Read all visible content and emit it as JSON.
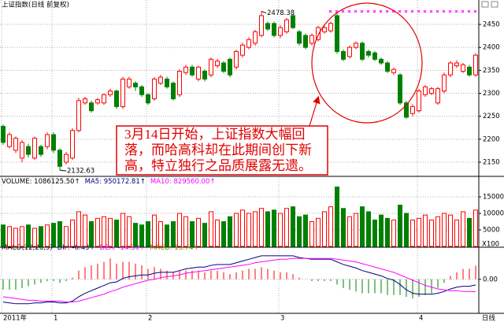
{
  "chart_data": [
    {
      "type": "candlestick",
      "title": "上证指数(日线 前复权)",
      "period_label": "日线",
      "categories": [
        "2011年",
        null,
        null,
        null,
        null,
        null,
        null,
        null,
        "1",
        null,
        null,
        null,
        null,
        null,
        null,
        null,
        null,
        null,
        null,
        null,
        null,
        null,
        null,
        "2",
        null,
        null,
        null,
        null,
        null,
        null,
        null,
        null,
        null,
        null,
        null,
        null,
        null,
        null,
        null,
        null,
        null,
        null,
        null,
        null,
        "3",
        null,
        null,
        null,
        null,
        null,
        null,
        null,
        null,
        null,
        null,
        null,
        null,
        null,
        null,
        null,
        null,
        null,
        null,
        null,
        null,
        null,
        "4",
        null,
        null,
        null,
        null,
        null,
        null,
        null,
        null,
        null
      ],
      "open": [
        2228,
        2184,
        2176,
        2159,
        2184,
        2159,
        2184,
        2184,
        2210,
        2176,
        2150,
        2159,
        2219,
        2279,
        2279,
        2279,
        2279,
        2297,
        2305,
        2271,
        2314,
        2322,
        2314,
        2297,
        2288,
        2322,
        2331,
        2322,
        2297,
        2345,
        2357,
        2331,
        2348,
        2340,
        2360,
        2366,
        2374,
        2357,
        2383,
        2400,
        2409,
        2426,
        2452,
        2452,
        2426,
        2434,
        2469,
        2434,
        2426,
        2409,
        2417,
        2434,
        2436,
        2469,
        2391,
        2380,
        2400,
        2409,
        2391,
        2388,
        2374,
        2366,
        2345,
        2340,
        2279,
        2256,
        2262,
        2297,
        2300,
        2279,
        2305,
        2340,
        2360,
        2348,
        2357,
        2340
      ],
      "high": [
        2232,
        2215,
        2206,
        2198,
        2190,
        2206,
        2188,
        2215,
        2215,
        2180,
        2172,
        2224,
        2290,
        2292,
        2284,
        2290,
        2300,
        2310,
        2308,
        2336,
        2336,
        2326,
        2318,
        2300,
        2335,
        2340,
        2336,
        2326,
        2352,
        2362,
        2362,
        2360,
        2352,
        2378,
        2375,
        2370,
        2378,
        2395,
        2410,
        2422,
        2438,
        2478.38,
        2456,
        2456,
        2448,
        2464,
        2473,
        2438,
        2430,
        2430,
        2447,
        2447,
        2456,
        2474,
        2395,
        2404,
        2413,
        2413,
        2395,
        2392,
        2378,
        2370,
        2356,
        2344,
        2284,
        2276,
        2310,
        2318,
        2314,
        2314,
        2345,
        2370,
        2372,
        2366,
        2362,
        2387
      ],
      "low": [
        2188,
        2180,
        2170,
        2150,
        2160,
        2155,
        2162,
        2178,
        2170,
        2132.63,
        2145,
        2155,
        2215,
        2275,
        2258,
        2275,
        2275,
        2292,
        2266,
        2266,
        2310,
        2305,
        2292,
        2275,
        2284,
        2318,
        2310,
        2284,
        2292,
        2340,
        2336,
        2326,
        2326,
        2335,
        2355,
        2344,
        2335,
        2352,
        2378,
        2396,
        2404,
        2422,
        2436,
        2422,
        2420,
        2430,
        2440,
        2404,
        2396,
        2404,
        2413,
        2430,
        2432,
        2386,
        2370,
        2376,
        2396,
        2370,
        2378,
        2370,
        2362,
        2344,
        2340,
        2275,
        2244,
        2250,
        2258,
        2292,
        2296,
        2275,
        2300,
        2335,
        2355,
        2344,
        2336,
        2336
      ],
      "close": [
        2193,
        2210,
        2202,
        2193,
        2167,
        2202,
        2167,
        2210,
        2176,
        2141,
        2167,
        2219,
        2284,
        2288,
        2262,
        2286,
        2297,
        2305,
        2271,
        2331,
        2331,
        2314,
        2297,
        2279,
        2331,
        2335,
        2314,
        2288,
        2348,
        2357,
        2340,
        2357,
        2331,
        2374,
        2370,
        2348,
        2340,
        2391,
        2405,
        2417,
        2434,
        2469,
        2440,
        2426,
        2443,
        2460,
        2443,
        2409,
        2400,
        2426,
        2443,
        2443,
        2452,
        2391,
        2374,
        2400,
        2409,
        2374,
        2383,
        2374,
        2366,
        2348,
        2352,
        2279,
        2248,
        2271,
        2305,
        2314,
        2310,
        2310,
        2340,
        2366,
        2366,
        2362,
        2340,
        2383
      ],
      "up_color": "#ff0000",
      "down_color": "#008000",
      "ylim": [
        2126,
        2486
      ],
      "yticks": [
        2150,
        2200,
        2250,
        2300,
        2350,
        2400,
        2450
      ],
      "grid": true,
      "callout": [
        "3月14日开始，上证指数大幅回",
        "落，而哈高科却在此期间创下新",
        "高，特立独行之品质展露无遗。"
      ]
    },
    {
      "type": "bar",
      "legend": [
        {
          "text": "VOLUME: 1086125.50↑",
          "color": "#000000"
        },
        {
          "text": "MA5: 950172.81↑",
          "color": "#000080"
        },
        {
          "text": "MA10: 829560.00↑",
          "color": "#ff00ff"
        }
      ],
      "values": [
        6500,
        6000,
        5500,
        6000,
        6500,
        5500,
        6000,
        6500,
        7000,
        7500,
        6000,
        8000,
        10500,
        9500,
        7500,
        8500,
        9000,
        8500,
        8000,
        10000,
        9000,
        7000,
        6500,
        7500,
        9500,
        7500,
        6500,
        7500,
        10000,
        9000,
        7500,
        8500,
        7000,
        10500,
        8000,
        7500,
        9000,
        10000,
        11000,
        10000,
        10500,
        11500,
        10500,
        11000,
        10000,
        11500,
        12000,
        9000,
        9500,
        7500,
        8500,
        10500,
        12000,
        18000,
        11500,
        9000,
        10000,
        12000,
        10500,
        8000,
        9500,
        8500,
        8000,
        12500,
        10000,
        8000,
        8500,
        9500,
        8000,
        9000,
        10000,
        9500,
        8000,
        10500,
        8500,
        11000
      ],
      "ylim": [
        0,
        19300
      ],
      "yticks": [
        5000,
        10000,
        15000
      ],
      "unit_label": "X100",
      "grid": true
    },
    {
      "type": "macd",
      "legend": [
        {
          "text": "MACD(12,26,9)",
          "color": "#000000"
        },
        {
          "text": "DIF: -6.43↑",
          "color": "#000080"
        },
        {
          "text": "DEA: -14.30↑",
          "color": "#ff00ff"
        },
        {
          "text": "MACD: 15.74↑",
          "color": "#808000"
        }
      ],
      "histogram": [
        -12,
        -12,
        -12,
        -10,
        -8,
        -6,
        -4,
        -2,
        -2,
        -4,
        -2,
        2,
        10,
        14,
        16,
        18,
        20,
        24,
        18,
        20,
        20,
        18,
        16,
        12,
        14,
        12,
        10,
        8,
        10,
        10,
        10,
        10,
        8,
        10,
        10,
        8,
        6,
        8,
        10,
        12,
        12,
        14,
        12,
        10,
        8,
        8,
        6,
        2,
        0,
        -2,
        -2,
        -2,
        -2,
        -6,
        -10,
        -12,
        -14,
        -16,
        -16,
        -16,
        -16,
        -18,
        -18,
        -18,
        -20,
        -22,
        -20,
        -18,
        -16,
        -10,
        -4,
        4,
        8,
        12,
        12,
        15.74
      ],
      "series": [
        {
          "color": "#000080",
          "values": [
            -26,
            -27,
            -28,
            -28,
            -28,
            -27,
            -27,
            -26,
            -26,
            -27,
            -27,
            -25,
            -20,
            -16,
            -13,
            -10,
            -7,
            -4,
            -3,
            1,
            3,
            4,
            5,
            5,
            7,
            8,
            8,
            8,
            10,
            12,
            13,
            14,
            14,
            16,
            17,
            17,
            17,
            19,
            21,
            23,
            25,
            27,
            27,
            27,
            27,
            27,
            27,
            25,
            24,
            23,
            23,
            23,
            23,
            20,
            17,
            15,
            13,
            10,
            8,
            6,
            4,
            1,
            -1,
            -6,
            -12,
            -16,
            -17,
            -17,
            -17,
            -16,
            -14,
            -11,
            -9,
            -8,
            -8,
            -6.43
          ]
        },
        {
          "color": "#ff00ff",
          "values": [
            -20,
            -21,
            -22,
            -23,
            -24,
            -24,
            -25,
            -25,
            -25,
            -25,
            -26,
            -26,
            -25,
            -23,
            -21,
            -19,
            -17,
            -14,
            -12,
            -9,
            -7,
            -5,
            -3,
            -1,
            0,
            2,
            3,
            4,
            5,
            7,
            8,
            9,
            10,
            11,
            12,
            13,
            14,
            15,
            16,
            17,
            19,
            20,
            21,
            22,
            23,
            23,
            24,
            24,
            24,
            24,
            24,
            24,
            24,
            23,
            22,
            21,
            20,
            18,
            16,
            14,
            12,
            10,
            8,
            5,
            2,
            -1,
            -4,
            -7,
            -9,
            -11,
            -12,
            -13,
            -13,
            -14,
            -14,
            -14.3
          ]
        }
      ],
      "up_color": "#ff0000",
      "down_color": "#008000",
      "ylim": [
        -39,
        35
      ],
      "yticks": [
        {
          "value": 0,
          "label": "0.00"
        }
      ],
      "grid": true
    }
  ]
}
